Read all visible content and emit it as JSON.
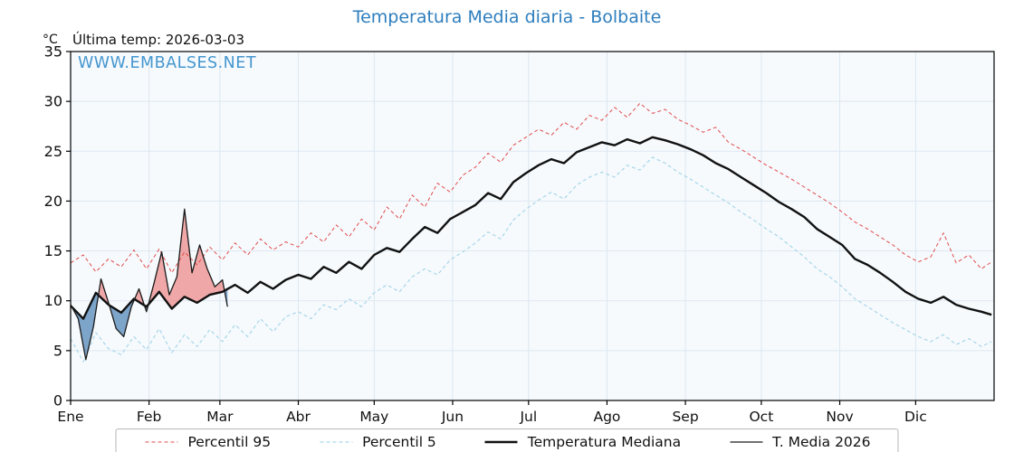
{
  "header": {
    "title": "Temperatura Media diaria - Bolbaite",
    "last_temp_label": "Última temp: 2026-03-03"
  },
  "watermark": "WWW.EMBALSES.NET",
  "colors": {
    "title": "#2e7ebd",
    "watermark": "#4596cf",
    "grid": "#dde7f0",
    "plot_bg": "#f6fafd",
    "spine": "#000000",
    "tick_label": "#111111"
  },
  "chart_data": {
    "type": "line",
    "title": "Temperatura Media diaria - Bolbaite",
    "ylabel": "°C",
    "ylim": [
      0,
      35
    ],
    "y_ticks": [
      0,
      5,
      10,
      15,
      20,
      25,
      30,
      35
    ],
    "x_range_days": [
      0,
      365
    ],
    "months": [
      "Ene",
      "Feb",
      "Mar",
      "Abr",
      "May",
      "Jun",
      "Jul",
      "Ago",
      "Sep",
      "Oct",
      "Nov",
      "Dic"
    ],
    "month_start_days": [
      0,
      31,
      59,
      90,
      120,
      151,
      181,
      212,
      243,
      273,
      304,
      334
    ],
    "grid": true,
    "legend_position": "bottom",
    "x_days": [
      0,
      5,
      10,
      15,
      20,
      25,
      30,
      35,
      40,
      45,
      50,
      55,
      60,
      65,
      70,
      75,
      80,
      85,
      90,
      95,
      100,
      105,
      110,
      115,
      120,
      125,
      130,
      135,
      140,
      145,
      150,
      155,
      160,
      165,
      170,
      175,
      180,
      185,
      190,
      195,
      200,
      205,
      210,
      215,
      220,
      225,
      230,
      235,
      240,
      245,
      250,
      255,
      260,
      265,
      270,
      275,
      280,
      285,
      290,
      295,
      300,
      305,
      310,
      315,
      320,
      325,
      330,
      335,
      340,
      345,
      350,
      355,
      360,
      364
    ],
    "series": [
      {
        "name": "Percentil 95",
        "color": "#e14b4b",
        "dash": "dashed",
        "width": 1,
        "values": [
          13.8,
          14.6,
          12.9,
          14.2,
          13.4,
          15.1,
          13.2,
          15.2,
          12.8,
          14.9,
          13.6,
          15.4,
          14.1,
          15.8,
          14.6,
          16.2,
          15.1,
          15.9,
          15.4,
          16.8,
          15.9,
          17.6,
          16.4,
          18.2,
          17.1,
          19.4,
          18.2,
          20.6,
          19.4,
          21.8,
          20.9,
          22.6,
          23.4,
          24.8,
          23.9,
          25.6,
          26.4,
          27.2,
          26.6,
          27.9,
          27.2,
          28.6,
          28.1,
          29.4,
          28.4,
          29.8,
          28.8,
          29.2,
          28.2,
          27.6,
          26.9,
          27.4,
          25.9,
          25.2,
          24.4,
          23.6,
          22.9,
          22.2,
          21.4,
          20.6,
          19.8,
          18.9,
          17.9,
          17.2,
          16.4,
          15.6,
          14.6,
          13.9,
          14.4,
          16.8,
          13.8,
          14.6,
          13.2,
          13.9
        ]
      },
      {
        "name": "Percentil 5",
        "color": "#a9d6e9",
        "dash": "dashed",
        "width": 1.2,
        "values": [
          6.2,
          3.9,
          6.8,
          5.2,
          4.6,
          6.4,
          5.1,
          7.2,
          4.8,
          6.6,
          5.4,
          7.1,
          5.9,
          7.6,
          6.4,
          8.2,
          6.9,
          8.4,
          8.9,
          8.2,
          9.6,
          9.1,
          10.2,
          9.4,
          10.8,
          11.6,
          10.9,
          12.4,
          13.2,
          12.6,
          14.1,
          14.9,
          15.8,
          16.9,
          16.2,
          18.1,
          19.2,
          20.1,
          20.9,
          20.2,
          21.6,
          22.4,
          22.9,
          22.4,
          23.6,
          23.1,
          24.4,
          23.8,
          22.9,
          22.2,
          21.4,
          20.6,
          19.8,
          18.9,
          18.1,
          17.2,
          16.4,
          15.4,
          14.4,
          13.2,
          12.4,
          11.4,
          10.2,
          9.4,
          8.6,
          7.8,
          7.1,
          6.4,
          5.9,
          6.6,
          5.6,
          6.2,
          5.4,
          5.9
        ]
      },
      {
        "name": "Temperatura Mediana",
        "color": "#111111",
        "dash": "solid",
        "width": 2.4,
        "values": [
          9.5,
          8.2,
          10.8,
          9.6,
          8.8,
          10.2,
          9.4,
          10.9,
          9.2,
          10.4,
          9.8,
          10.6,
          10.9,
          11.6,
          10.8,
          11.9,
          11.2,
          12.1,
          12.6,
          12.2,
          13.4,
          12.8,
          13.9,
          13.2,
          14.6,
          15.3,
          14.9,
          16.2,
          17.4,
          16.8,
          18.2,
          18.9,
          19.6,
          20.8,
          20.2,
          21.9,
          22.8,
          23.6,
          24.2,
          23.8,
          24.9,
          25.4,
          25.9,
          25.6,
          26.2,
          25.8,
          26.4,
          26.1,
          25.7,
          25.2,
          24.6,
          23.8,
          23.2,
          22.4,
          21.6,
          20.8,
          19.9,
          19.2,
          18.4,
          17.2,
          16.4,
          15.6,
          14.2,
          13.6,
          12.8,
          11.9,
          10.9,
          10.2,
          9.8,
          10.4,
          9.6,
          9.2,
          8.9,
          8.6
        ]
      }
    ],
    "overlay_2026": {
      "name": "T. Media 2026",
      "color": "#1a1a1a",
      "dash": "solid",
      "width": 1.3,
      "fill_above": "rgba(231,84,84,0.5)",
      "fill_below": "rgba(60,120,175,0.65)",
      "x_days": [
        0,
        3,
        6,
        9,
        12,
        15,
        18,
        21,
        24,
        27,
        30,
        33,
        36,
        39,
        42,
        45,
        48,
        51,
        54,
        57,
        60,
        62
      ],
      "values": [
        9.6,
        8.2,
        4.1,
        7.4,
        12.2,
        9.8,
        7.2,
        6.4,
        9.4,
        11.2,
        8.9,
        11.8,
        14.9,
        10.6,
        12.4,
        19.2,
        12.8,
        15.6,
        13.2,
        11.4,
        12.1,
        9.4
      ]
    }
  },
  "legend": {
    "items": [
      {
        "label": "Percentil 95"
      },
      {
        "label": "Percentil 5"
      },
      {
        "label": "Temperatura Mediana"
      },
      {
        "label": "T. Media 2026"
      }
    ]
  }
}
